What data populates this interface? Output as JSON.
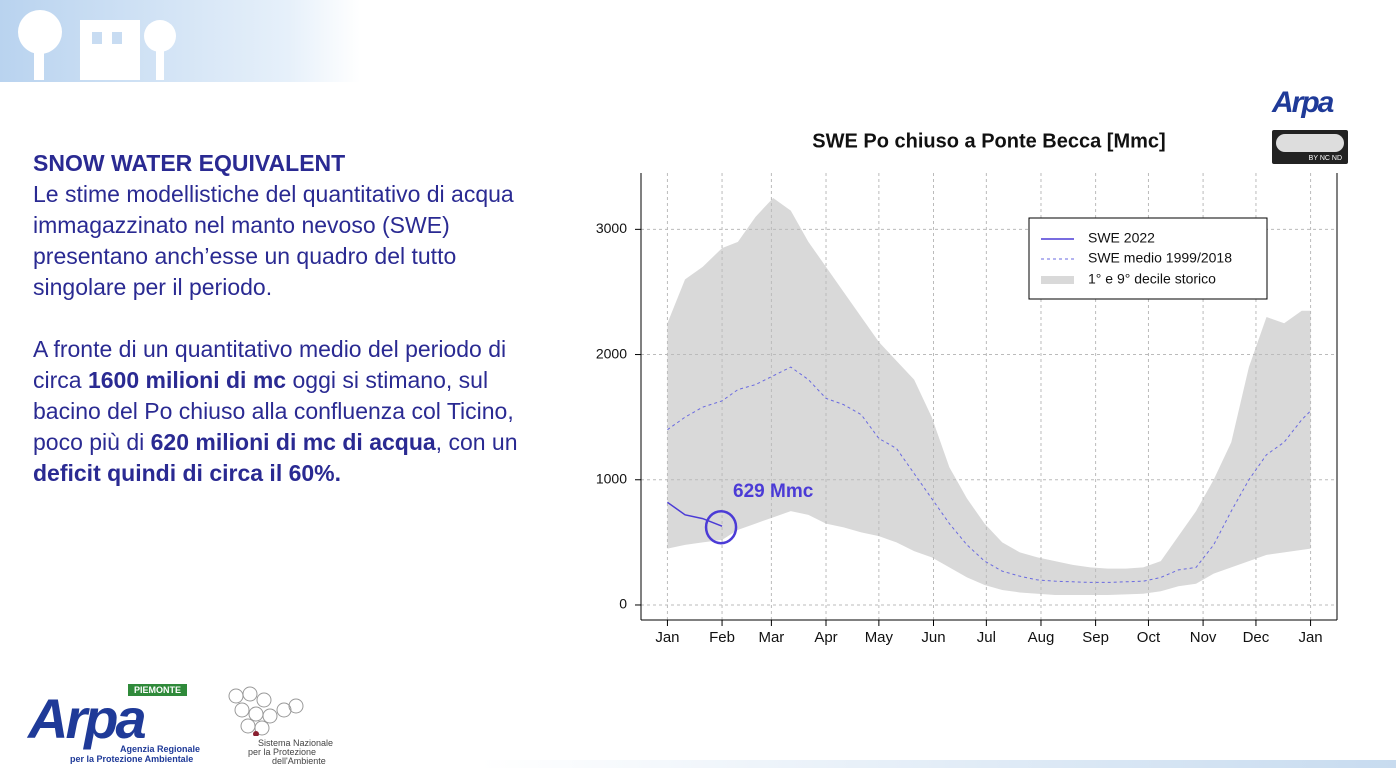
{
  "text": {
    "heading": "SNOW WATER EQUIVALENT",
    "paragraph1": "Le stime modellistiche del quantitativo di acqua immagazzinato nel manto nevoso (SWE) presentano anch’esse un quadro del tutto singolare per il periodo.",
    "paragraph2": [
      {
        "text": "A fronte di un quantitativo medio del periodo di circa ",
        "bold": false
      },
      {
        "text": "1600 milioni di mc",
        "bold": true
      },
      {
        "text": " oggi si stimano, sul bacino del Po chiuso alla confluenza col Ticino, poco più di ",
        "bold": false
      },
      {
        "text": "620 milioni di mc di acqua",
        "bold": true
      },
      {
        "text": ", con un ",
        "bold": false
      },
      {
        "text": "deficit quindi di circa il 60%.",
        "bold": true
      }
    ]
  },
  "logos": {
    "arpa_small": "Arpa",
    "cc": "BY NC ND",
    "arpa_region": "PIEMONTE",
    "arpa_name": "Arpa",
    "arpa_line1": "Agenzia Regionale",
    "arpa_line2": "per la Protezione Ambientale",
    "snpa_line1": "Sistema Nazionale",
    "snpa_line2": "per la Protezione",
    "snpa_line3": "dell'Ambiente"
  },
  "chart_data": {
    "type": "line",
    "title": "SWE Po chiuso a Ponte Becca [Mmc]",
    "annotation": "629 Mmc",
    "x": [
      0,
      10,
      20,
      31,
      40,
      50,
      60,
      70,
      80,
      90,
      100,
      110,
      120,
      130,
      140,
      150,
      160,
      170,
      180,
      190,
      200,
      210,
      220,
      230,
      240,
      250,
      260,
      270,
      280,
      290,
      300,
      310,
      320,
      330,
      340,
      350,
      360,
      365
    ],
    "xlim": [
      -15,
      380
    ],
    "xticks": [
      {
        "value": 0,
        "label": "Jan"
      },
      {
        "value": 31,
        "label": "Feb"
      },
      {
        "value": 59,
        "label": "Mar"
      },
      {
        "value": 90,
        "label": "Apr"
      },
      {
        "value": 120,
        "label": "May"
      },
      {
        "value": 151,
        "label": "Jun"
      },
      {
        "value": 181,
        "label": "Jul"
      },
      {
        "value": 212,
        "label": "Aug"
      },
      {
        "value": 243,
        "label": "Sep"
      },
      {
        "value": 273,
        "label": "Oct"
      },
      {
        "value": 304,
        "label": "Nov"
      },
      {
        "value": 334,
        "label": "Dec"
      },
      {
        "value": 365,
        "label": "Jan"
      }
    ],
    "ylim": [
      -120,
      3450
    ],
    "yticks": [
      0,
      1000,
      2000,
      3000
    ],
    "grid": true,
    "legend": "top-right",
    "band": {
      "name": "1°  e 9°  decile storico",
      "color": "#d9d9d9",
      "lower": [
        450,
        480,
        500,
        520,
        600,
        650,
        700,
        750,
        720,
        650,
        620,
        580,
        550,
        500,
        430,
        380,
        300,
        220,
        160,
        120,
        100,
        90,
        80,
        80,
        80,
        80,
        85,
        90,
        110,
        150,
        170,
        250,
        300,
        350,
        400,
        420,
        440,
        450
      ],
      "upper": [
        2250,
        2600,
        2700,
        2850,
        2900,
        3100,
        3250,
        3150,
        2900,
        2700,
        2500,
        2300,
        2100,
        1950,
        1800,
        1500,
        1100,
        850,
        650,
        500,
        420,
        380,
        350,
        320,
        300,
        290,
        290,
        300,
        350,
        550,
        750,
        1000,
        1300,
        1900,
        2300,
        2250,
        2350,
        2350
      ]
    },
    "series": [
      {
        "name": "SWE 2022",
        "color": "#4b3bd6",
        "dashed": false,
        "values": [
          820,
          720,
          690,
          629,
          null,
          null,
          null,
          null,
          null,
          null,
          null,
          null,
          null,
          null,
          null,
          null,
          null,
          null,
          null,
          null,
          null,
          null,
          null,
          null,
          null,
          null,
          null,
          null,
          null,
          null,
          null,
          null,
          null,
          null,
          null,
          null,
          null,
          null
        ]
      },
      {
        "name": "SWE medio 1999/2018",
        "color": "#6a6ae0",
        "dashed": true,
        "values": [
          1400,
          1500,
          1580,
          1630,
          1720,
          1760,
          1830,
          1900,
          1800,
          1650,
          1600,
          1520,
          1330,
          1250,
          1050,
          850,
          650,
          480,
          350,
          270,
          230,
          200,
          190,
          185,
          180,
          180,
          185,
          190,
          220,
          280,
          300,
          480,
          750,
          1000,
          1200,
          1300,
          1480,
          1550
        ]
      }
    ]
  }
}
